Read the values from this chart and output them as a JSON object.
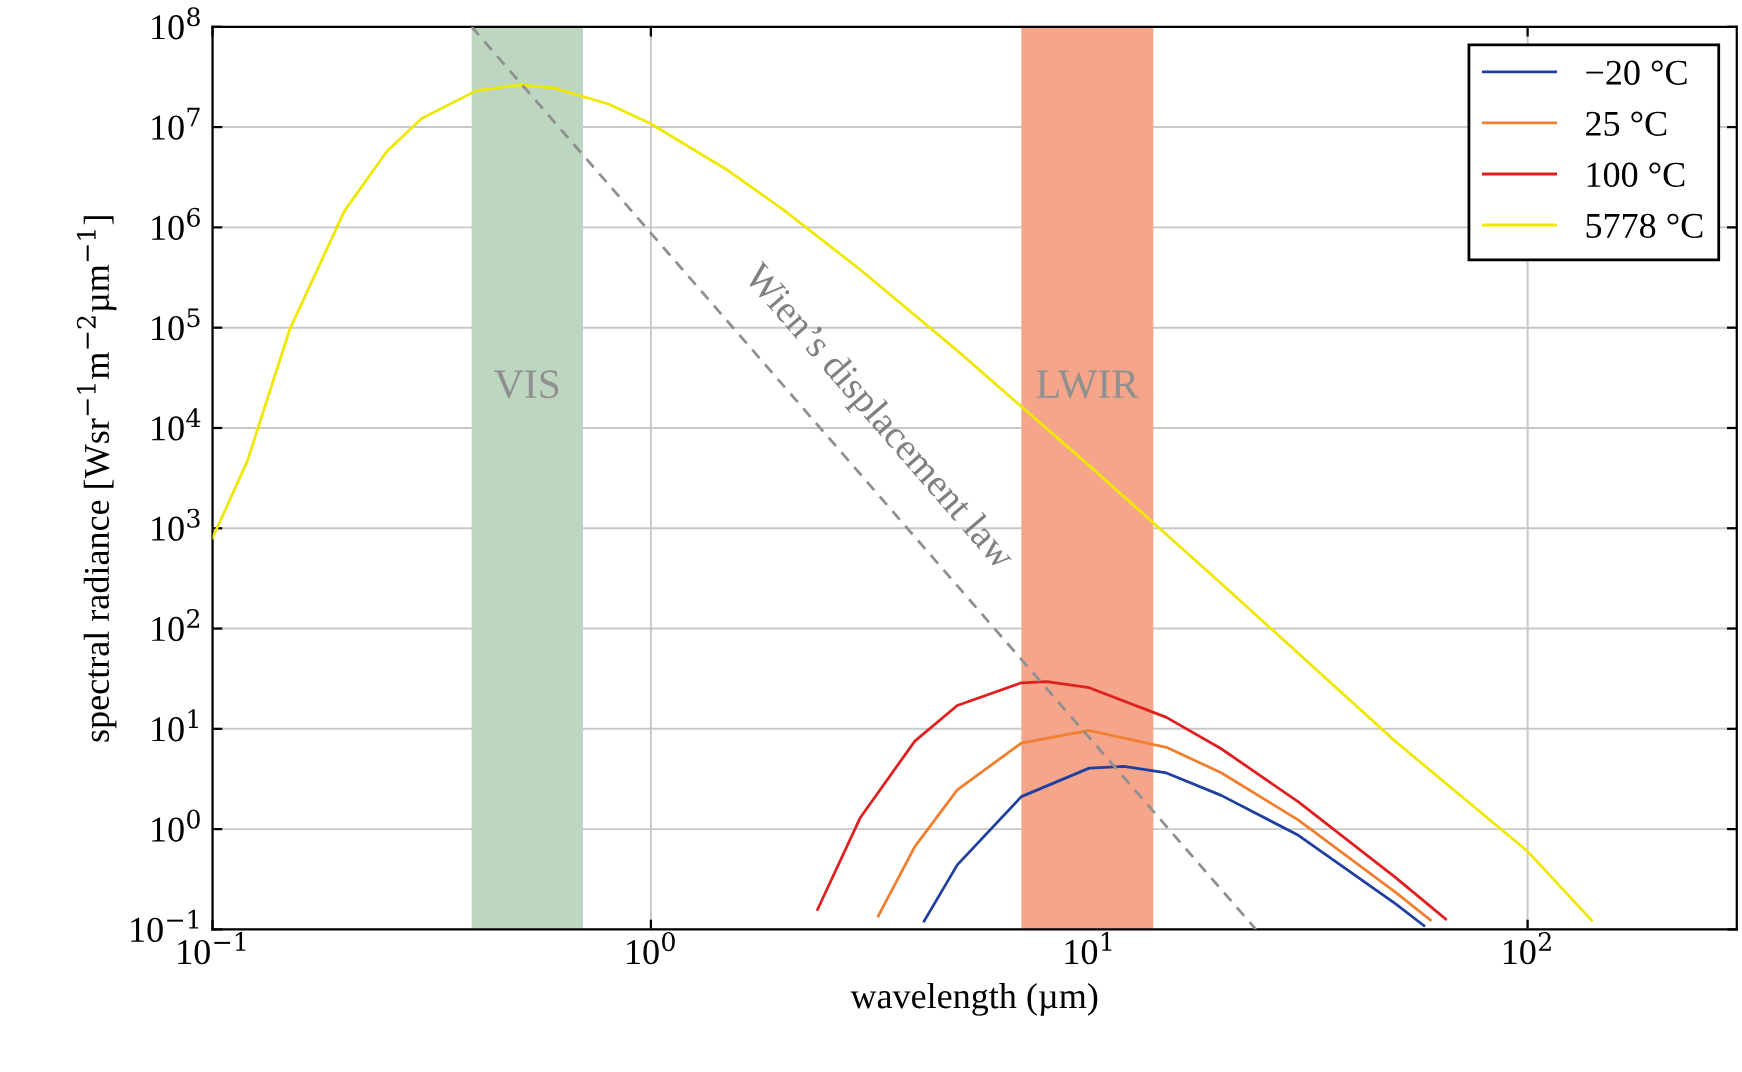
{
  "chart_data": {
    "type": "line",
    "xlabel": "wavelength (µm)",
    "ylabel": "spectral radiance [Wsr$^{−1}$m$^{−2}$µm$^{−1}$]",
    "log": "xy",
    "grid": true,
    "legend": "top right",
    "marker": "none",
    "line_style": "solid",
    "xlim": [
      0.1,
      300
    ],
    "ylim": [
      0.1,
      100000000
    ],
    "xticks": [
      {
        "value": 0.1,
        "label": "10$^{−1}$"
      },
      {
        "value": 1,
        "label": "10$^{0}$"
      },
      {
        "value": 10,
        "label": "10$^{1}$"
      },
      {
        "value": 100,
        "label": "10$^{2}$"
      }
    ],
    "yticks": [
      {
        "value": 0.1,
        "label": "10$^{−1}$"
      },
      {
        "value": 1,
        "label": "10$^{0}$"
      },
      {
        "value": 10,
        "label": "10$^{1}$"
      },
      {
        "value": 100,
        "label": "10$^{2}$"
      },
      {
        "value": 1000,
        "label": "10$^{3}$"
      },
      {
        "value": 10000,
        "label": "10$^{4}$"
      },
      {
        "value": 100000,
        "label": "10$^{5}$"
      },
      {
        "value": 1000000,
        "label": "10$^{6}$"
      },
      {
        "value": 10000000,
        "label": "10$^{7}$"
      },
      {
        "value": 100000000,
        "label": "10$^{8}$"
      }
    ],
    "bands": [
      {
        "axis": "x",
        "from": 0.39,
        "to": 0.7,
        "label": "VIS",
        "color": "#bcd6c0"
      },
      {
        "axis": "x",
        "from": 7,
        "to": 14,
        "label": "LWIR",
        "color": "#f4a58a"
      }
    ],
    "series": [
      {
        "name": "−20 °C",
        "color": "#2040a0",
        "x": [
          4.2,
          5,
          7,
          10,
          12,
          15,
          20,
          30,
          50,
          58
        ],
        "values": [
          0.121,
          0.44,
          2.11,
          4.06,
          4.23,
          3.63,
          2.17,
          0.867,
          0.18,
          0.109
        ]
      },
      {
        "name": "25 °C",
        "color": "#f08030",
        "x": [
          3.3,
          4,
          5,
          7,
          10,
          15,
          20,
          30,
          50,
          60
        ],
        "values": [
          0.136,
          0.67,
          2.46,
          7.22,
          9.63,
          6.55,
          3.65,
          1.23,
          0.234,
          0.124
        ]
      },
      {
        "name": "100 °C",
        "color": "#e02020",
        "x": [
          2.4,
          3,
          4,
          5,
          7,
          8,
          10,
          15,
          20,
          30,
          50,
          65
        ],
        "values": [
          0.158,
          1.29,
          7.55,
          17.1,
          28.8,
          29.5,
          25.7,
          13.0,
          6.33,
          1.87,
          0.328,
          0.127
        ]
      },
      {
        "name": "5778 °C",
        "color": "#f0e800",
        "x": [
          0.1,
          0.12,
          0.15,
          0.2,
          0.25,
          0.3,
          0.4,
          0.5,
          0.6,
          0.8,
          1,
          1.5,
          2,
          3,
          5,
          10,
          20,
          50,
          100,
          140
        ],
        "values": [
          800,
          4640,
          96000,
          1460000,
          5750000,
          12200000,
          23100000,
          26400000,
          24600000,
          17000000,
          10800000,
          3690000,
          1510000,
          380000,
          59000,
          4210,
          281,
          7.46,
          0.6,
          0.123
        ]
      },
      {
        "color": "#909090",
        "line_style": "dashed",
        "x": [
          0.39,
          24
        ],
        "values": [
          100000000,
          0.1
        ]
      }
    ],
    "annotations": [
      {
        "text": "Wien’s displacement law",
        "x": 2.7,
        "y": 5900
      }
    ]
  }
}
